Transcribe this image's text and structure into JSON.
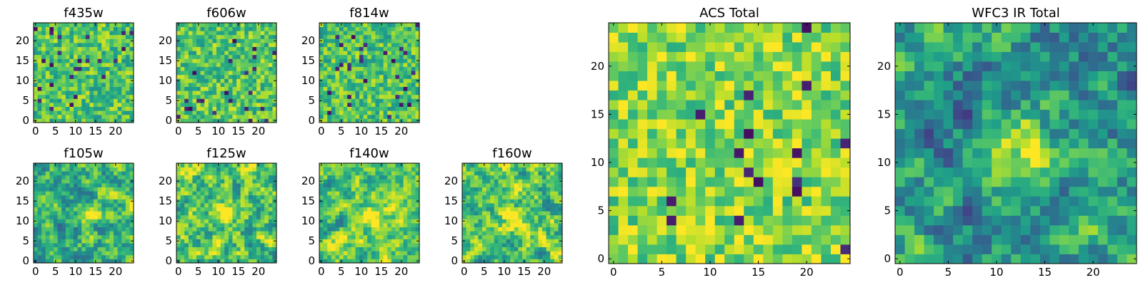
{
  "chart_data": [
    {
      "type": "heatmap",
      "title": "f435w",
      "xticks": [
        0,
        5,
        10,
        15,
        20
      ],
      "yticks": [
        0,
        5,
        10,
        15,
        20
      ],
      "xlim": [
        -0.5,
        24.5
      ],
      "ylim": [
        -0.5,
        24.5
      ],
      "grid_size": 25,
      "texture": "noise",
      "colormap": "viridis",
      "brightness": 0.72
    },
    {
      "type": "heatmap",
      "title": "f606w",
      "xticks": [
        0,
        5,
        10,
        15,
        20
      ],
      "yticks": [
        0,
        5,
        10,
        15,
        20
      ],
      "xlim": [
        -0.5,
        24.5
      ],
      "ylim": [
        -0.5,
        24.5
      ],
      "grid_size": 25,
      "texture": "noise",
      "colormap": "viridis",
      "brightness": 0.73
    },
    {
      "type": "heatmap",
      "title": "f814w",
      "xticks": [
        0,
        5,
        10,
        15,
        20
      ],
      "yticks": [
        0,
        5,
        10,
        15,
        20
      ],
      "xlim": [
        -0.5,
        24.5
      ],
      "ylim": [
        -0.5,
        24.5
      ],
      "grid_size": 25,
      "texture": "noise",
      "colormap": "viridis",
      "brightness": 0.71
    },
    {
      "type": "heatmap",
      "title": "f105w",
      "xticks": [
        0,
        5,
        10,
        15,
        20
      ],
      "yticks": [
        0,
        5,
        10,
        15,
        20
      ],
      "xlim": [
        -0.5,
        24.5
      ],
      "ylim": [
        -0.5,
        24.5
      ],
      "grid_size": 25,
      "texture": "smooth",
      "colormap": "viridis",
      "brightness": 0.67,
      "peak": [
        14,
        12
      ]
    },
    {
      "type": "heatmap",
      "title": "f125w",
      "xticks": [
        0,
        5,
        10,
        15,
        20
      ],
      "yticks": [
        0,
        5,
        10,
        15,
        20
      ],
      "xlim": [
        -0.5,
        24.5
      ],
      "ylim": [
        -0.5,
        24.5
      ],
      "grid_size": 25,
      "texture": "smooth",
      "colormap": "viridis",
      "brightness": 0.74,
      "peak": [
        12,
        12
      ]
    },
    {
      "type": "heatmap",
      "title": "f140w",
      "xticks": [
        0,
        5,
        10,
        15,
        20
      ],
      "yticks": [
        0,
        5,
        10,
        15,
        20
      ],
      "xlim": [
        -0.5,
        24.5
      ],
      "ylim": [
        -0.5,
        24.5
      ],
      "grid_size": 25,
      "texture": "smooth",
      "colormap": "viridis",
      "brightness": 0.72,
      "peak": [
        13,
        11
      ]
    },
    {
      "type": "heatmap",
      "title": "f160w",
      "xticks": [
        0,
        5,
        10,
        15,
        20
      ],
      "yticks": [
        0,
        5,
        10,
        15,
        20
      ],
      "xlim": [
        -0.5,
        24.5
      ],
      "ylim": [
        -0.5,
        24.5
      ],
      "grid_size": 25,
      "texture": "smooth",
      "colormap": "viridis",
      "brightness": 0.73,
      "peak": [
        12,
        11
      ]
    },
    {
      "type": "heatmap",
      "title": "ACS Total",
      "xticks": [
        0,
        5,
        10,
        15,
        20
      ],
      "yticks": [
        0,
        5,
        10,
        15,
        20
      ],
      "xlim": [
        -0.5,
        24.5
      ],
      "ylim": [
        -0.5,
        24.5
      ],
      "grid_size": 25,
      "texture": "noise",
      "colormap": "viridis",
      "brightness": 0.82
    },
    {
      "type": "heatmap",
      "title": "WFC3 IR Total",
      "xticks": [
        0,
        5,
        10,
        15,
        20
      ],
      "yticks": [
        0,
        5,
        10,
        15,
        20
      ],
      "xlim": [
        -0.5,
        24.5
      ],
      "ylim": [
        -0.5,
        24.5
      ],
      "grid_size": 25,
      "texture": "smooth",
      "colormap": "viridis",
      "brightness": 0.52,
      "peak": [
        13,
        12
      ]
    }
  ]
}
